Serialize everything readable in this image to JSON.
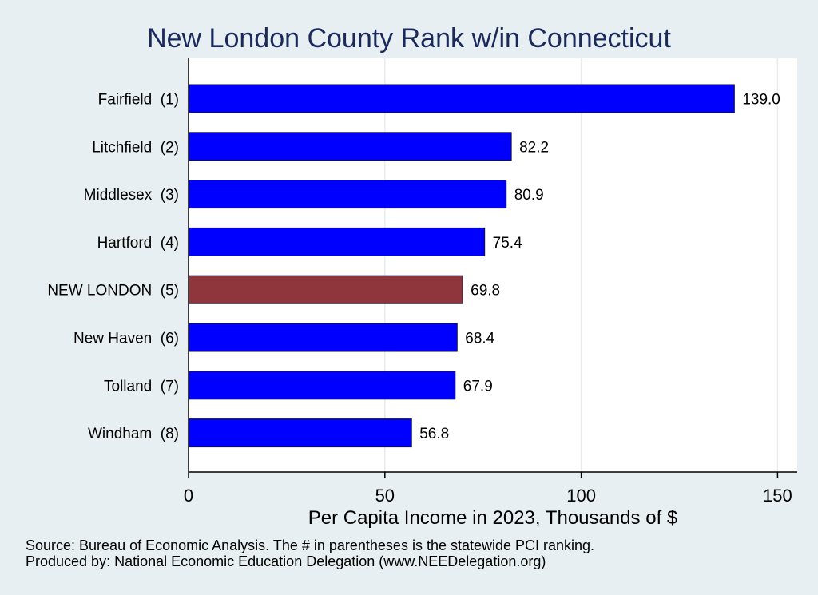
{
  "chart_data": {
    "type": "bar",
    "orientation": "horizontal",
    "title": "New London County Rank w/in Connecticut",
    "xlabel": "Per Capita Income in 2023, Thousands of $",
    "ylabel": "",
    "xlim": [
      0,
      155
    ],
    "xticks": [
      0,
      50,
      100,
      150
    ],
    "grid": true,
    "categories": [
      "Fairfield  (1)",
      "Litchfield  (2)",
      "Middlesex  (3)",
      "Hartford  (4)",
      "NEW LONDON  (5)",
      "New Haven  (6)",
      "Tolland  (7)",
      "Windham  (8)"
    ],
    "values": [
      139.0,
      82.2,
      80.9,
      75.4,
      69.8,
      68.4,
      67.9,
      56.8
    ],
    "value_labels": [
      "139.0",
      "82.2",
      "80.9",
      "75.4",
      "69.8",
      "68.4",
      "67.9",
      "56.8"
    ],
    "highlight_index": 4,
    "colors": {
      "bar": "#0000ff",
      "highlight": "#8f363d",
      "bar_edge": "#111133",
      "plot_bg": "#ffffff",
      "page_bg": "#e8eff2",
      "grid": "#e6ecef",
      "title": "#1a2a5a"
    }
  },
  "notes": {
    "source": "Source: Bureau of Economic Analysis. The # in parentheses is the statewide PCI ranking.",
    "produced_by": "Produced by: National Economic Education Delegation (www.NEEDelegation.org)"
  }
}
